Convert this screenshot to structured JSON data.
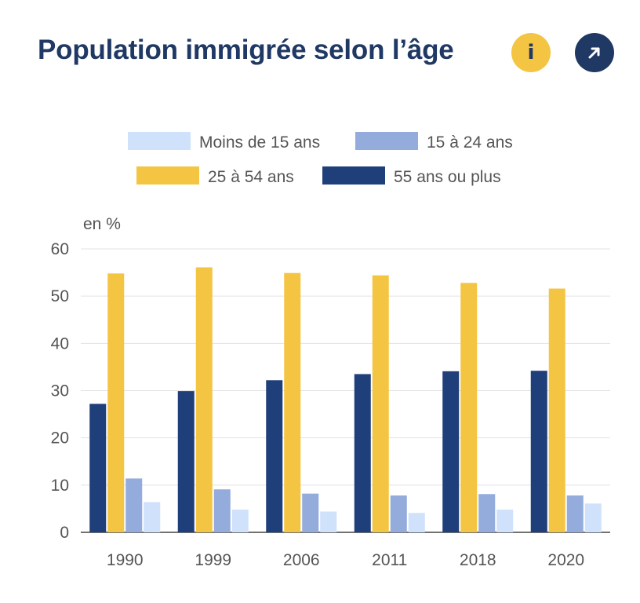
{
  "header": {
    "title": "Population immigrée selon l’âge",
    "info_icon": "info-icon",
    "info_glyph": "i",
    "open_icon": "arrow-up-right-icon"
  },
  "chart_data": {
    "type": "bar",
    "title": "Population immigrée selon l’âge",
    "ylabel": "en %",
    "xlabel": "",
    "ylim": [
      0,
      60
    ],
    "yticks": [
      0,
      10,
      20,
      30,
      40,
      50,
      60
    ],
    "grid": true,
    "legend_position": "top",
    "categories": [
      "1990",
      "1999",
      "2006",
      "2011",
      "2018",
      "2020"
    ],
    "series": [
      {
        "name": "55 ans ou plus",
        "color": "#1f3f7a",
        "values": [
          27.2,
          29.9,
          32.2,
          33.5,
          34.1,
          34.2
        ]
      },
      {
        "name": "25 à 54 ans",
        "color": "#f4c542",
        "values": [
          54.8,
          56.1,
          54.9,
          54.4,
          52.8,
          51.6
        ]
      },
      {
        "name": "15 à 24 ans",
        "color": "#93acdc",
        "values": [
          11.4,
          9.1,
          8.2,
          7.8,
          8.1,
          7.8
        ]
      },
      {
        "name": "Moins de 15 ans",
        "color": "#cfe1fb",
        "values": [
          6.4,
          4.8,
          4.4,
          4.1,
          4.8,
          6.1
        ]
      }
    ],
    "legend": [
      "Moins de 15 ans",
      "15 à 24 ans",
      "25 à 54 ans",
      "55 ans ou plus"
    ]
  }
}
